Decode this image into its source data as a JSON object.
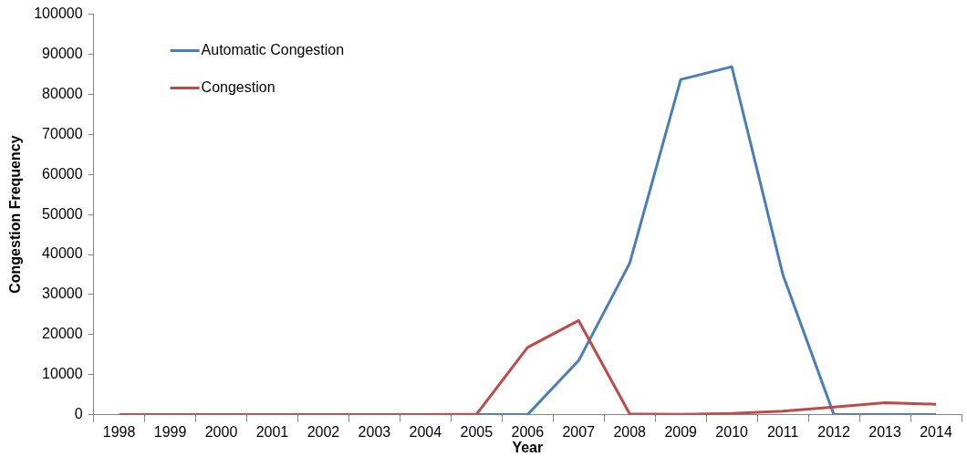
{
  "chart_data": {
    "type": "line",
    "xlabel": "Year",
    "ylabel": "Congestion Frequency",
    "categories": [
      "1998",
      "1999",
      "2000",
      "2001",
      "2002",
      "2003",
      "2004",
      "2005",
      "2006",
      "2007",
      "2008",
      "2009",
      "2010",
      "2011",
      "2012",
      "2013",
      "2014"
    ],
    "series": [
      {
        "name": "Automatic Congestion",
        "color": "#4a7ebb",
        "values": [
          null,
          null,
          null,
          null,
          null,
          null,
          null,
          0,
          0,
          13500,
          37800,
          83700,
          86900,
          35000,
          0,
          0,
          0
        ]
      },
      {
        "name": "Congestion",
        "color": "#be4b48",
        "values": [
          0,
          0,
          0,
          0,
          0,
          0,
          0,
          100,
          16800,
          23500,
          200,
          100,
          300,
          900,
          1900,
          3000,
          2600
        ]
      }
    ],
    "ylim": [
      0,
      100000
    ],
    "yticks": [
      0,
      10000,
      20000,
      30000,
      40000,
      50000,
      60000,
      70000,
      80000,
      90000,
      100000
    ],
    "grid": false,
    "legend": "top left",
    "marker": "none",
    "line_style": "solid"
  }
}
